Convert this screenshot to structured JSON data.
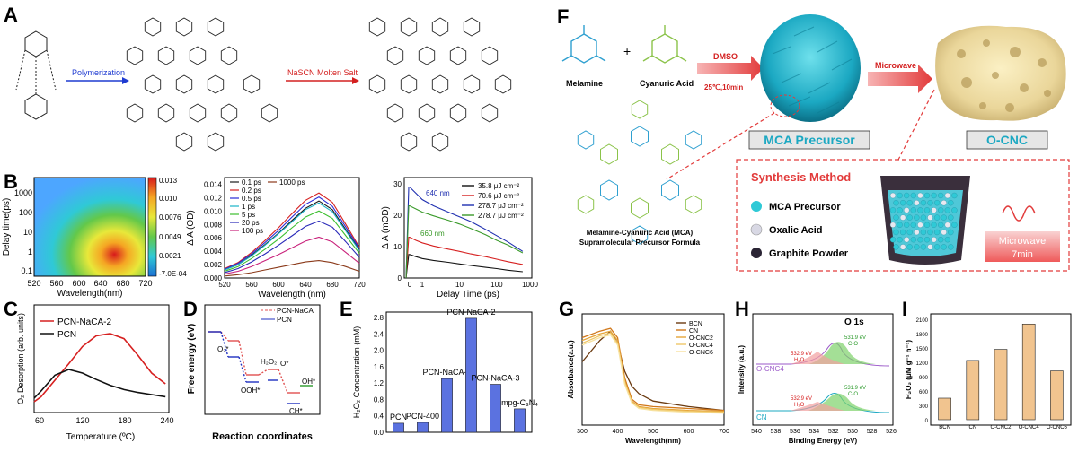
{
  "panels": {
    "A": {
      "letter": "A",
      "step1": "Polymerization",
      "step2": "NaSCN Molten Salt"
    },
    "B": {
      "letter": "B",
      "heatmap": {
        "ylabel": "Delay time(ps)",
        "xlabel": "Wavelength(nm)",
        "xticks": [
          "520",
          "560",
          "600",
          "640",
          "680",
          "720"
        ],
        "yticks": [
          "1000",
          "100",
          "10",
          "1",
          "0.1"
        ],
        "cbar": [
          "0.013",
          "0.010",
          "0.0076",
          "0.0049",
          "0.0021",
          "-7.0E-04"
        ]
      },
      "spectra": {
        "ylabel": "Δ A (OD)",
        "xlabel": "Wavelength (nm)",
        "xticks": [
          "520",
          "560",
          "600",
          "640",
          "680",
          "720"
        ],
        "yticks": [
          "0.000",
          "0.002",
          "0.004",
          "0.006",
          "0.008",
          "0.010",
          "0.012",
          "0.014"
        ],
        "legend": [
          "0.1 ps",
          "0.2 ps",
          "0.5 ps",
          "1 ps",
          "5 ps",
          "20 ps",
          "100 ps",
          "1000 ps"
        ]
      },
      "kinetics": {
        "ylabel": "Δ A (mOD)",
        "xlabel": "Delay Time (ps)",
        "xticks": [
          "0",
          "1",
          "10",
          "100",
          "1000"
        ],
        "yticks": [
          "0",
          "10",
          "20",
          "30"
        ],
        "legend": [
          "35.8 μJ cm⁻²",
          "70.6 μJ cm⁻²",
          "278.7 μJ cm⁻²",
          "278.7 μJ cm⁻²"
        ],
        "ann1": "640 nm",
        "ann2": "660 nm"
      }
    },
    "C": {
      "letter": "C",
      "legend": [
        "PCN-NaCA-2",
        "PCN"
      ],
      "ylabel": "O₂ Desorption (arb. units)",
      "xlabel": "Temperature (ºC)",
      "xticks": [
        "60",
        "120",
        "180",
        "240"
      ]
    },
    "D": {
      "letter": "D",
      "legend": [
        "PCN-NaCA",
        "PCN"
      ],
      "ylabel": "Free energy (eV)",
      "xlabel": "Reaction coordinates",
      "species": [
        "O₂*",
        "OOH*",
        "H₂O₂",
        "O*",
        "OH*",
        "CH*"
      ]
    },
    "E": {
      "letter": "E",
      "ylabel": "H₂O₂ Concentration (mM)",
      "yticks": [
        "0.0",
        "0.4",
        "0.8",
        "1.2",
        "1.6",
        "2.0",
        "2.4",
        "2.8"
      ],
      "labels": [
        "PCN",
        "PCN-400",
        "PCN-NaCA-1",
        "PCN-NaCA-2",
        "PCN-NaCA-3",
        "mpg-C₃N₄"
      ]
    },
    "F": {
      "letter": "F",
      "melamine": "Melamine",
      "cyanuric": "Cyanuric Acid",
      "dmso": "DMSO",
      "dmso_cond": "25℃,10min",
      "microwave_arrow": "Microwave",
      "precursor": "MCA Precursor",
      "product": "O-CNC",
      "formula1": "Melamine-Cyanuric Acid (MCA)",
      "formula2": "Supramolecular Precursor Formula",
      "synthesis_title": "Synthesis Method",
      "legend": [
        "MCA Precursor",
        "Oxalic Acid",
        "Graphite Powder"
      ],
      "mw_label1": "Microwave",
      "mw_label2": "7min"
    },
    "G": {
      "letter": "G",
      "ylabel": "Absorbance(a.u.)",
      "xlabel": "Wavelength(nm)",
      "xticks": [
        "300",
        "400",
        "500",
        "600",
        "700"
      ],
      "legend": [
        "BCN",
        "CN",
        "O-CNC2",
        "O-CNC4",
        "O-CNC6"
      ]
    },
    "H": {
      "letter": "H",
      "title": "O 1s",
      "ylabel": "Intensity (a.u.)",
      "xlabel": "Binding Energy (eV)",
      "xticks": [
        "540",
        "538",
        "536",
        "534",
        "532",
        "530",
        "528",
        "526"
      ],
      "s1": "O-CNC4",
      "s2": "CN",
      "p1a": "532.9 eV",
      "p1b": "H₂O",
      "p2a": "531.9 eV",
      "p2b": "C-O",
      "p3a": "532.9 eV",
      "p3b": "H₂O",
      "p4a": "531.9 eV",
      "p4b": "C-O"
    },
    "I": {
      "letter": "I",
      "ylabel": "H₂O₂ (μM g⁻¹ h⁻¹)",
      "yticks": [
        "0",
        "300",
        "600",
        "900",
        "1200",
        "1500",
        "1800",
        "2100"
      ],
      "labels": [
        "BCN",
        "CN",
        "O-CNC2",
        "O-CNC4",
        "O-CNC6"
      ]
    }
  },
  "chart_data": [
    {
      "type": "bar",
      "panel": "E",
      "categories": [
        "PCN",
        "PCN-400",
        "PCN-NaCA-1",
        "PCN-NaCA-2",
        "PCN-NaCA-3",
        "mpg-C₃N₄"
      ],
      "values": [
        0.22,
        0.24,
        1.31,
        2.78,
        1.17,
        0.57
      ],
      "ylim": [
        0,
        2.8
      ],
      "ylabel": "H₂O₂ Concentration (mM)",
      "color": "#5b72e0"
    },
    {
      "type": "bar",
      "panel": "I",
      "categories": [
        "BCN",
        "CN",
        "O-CNC2",
        "O-CNC4",
        "O-CNC6"
      ],
      "values": [
        450,
        1240,
        1470,
        2000,
        1020
      ],
      "ylim": [
        0,
        2100
      ],
      "ylabel": "H₂O₂ (μM g⁻¹ h⁻¹)",
      "color": "#f1c48f"
    },
    {
      "type": "line",
      "panel": "C",
      "x": [
        50,
        60,
        80,
        100,
        120,
        140,
        160,
        180,
        200,
        220,
        240
      ],
      "series": [
        {
          "name": "PCN-NaCA-2",
          "values": [
            0.05,
            0.12,
            0.35,
            0.58,
            0.82,
            0.97,
            1.0,
            0.93,
            0.7,
            0.45,
            0.3
          ],
          "color": "#d62020"
        },
        {
          "name": "PCN",
          "values": [
            0.1,
            0.2,
            0.42,
            0.5,
            0.45,
            0.36,
            0.28,
            0.22,
            0.18,
            0.15,
            0.12
          ],
          "color": "#111111"
        }
      ],
      "xlim": [
        50,
        245
      ],
      "xlabel": "Temperature (ºC)",
      "ylabel": "O₂ Desorption (arb. units)"
    },
    {
      "type": "line",
      "panel": "B-spectra",
      "x": [
        520,
        540,
        560,
        580,
        600,
        620,
        640,
        660,
        680,
        700,
        720
      ],
      "xlim": [
        520,
        720
      ],
      "ylim": [
        0,
        0.015
      ],
      "xlabel": "Wavelength (nm)",
      "ylabel": "Δ A (OD)",
      "series": [
        {
          "name": "0.1 ps",
          "color": "#1a1a1a",
          "values": [
            0.0012,
            0.002,
            0.0034,
            0.005,
            0.0067,
            0.0086,
            0.0104,
            0.0115,
            0.0102,
            0.0072,
            0.0042
          ]
        },
        {
          "name": "0.2 ps",
          "color": "#d62020",
          "values": [
            0.0014,
            0.0023,
            0.0038,
            0.0056,
            0.0075,
            0.0096,
            0.0116,
            0.0127,
            0.0113,
            0.008,
            0.0046
          ]
        },
        {
          "name": "0.5 ps",
          "color": "#2a2ad6",
          "values": [
            0.0013,
            0.0022,
            0.0036,
            0.0053,
            0.0071,
            0.0091,
            0.011,
            0.0121,
            0.0107,
            0.0076,
            0.0044
          ]
        },
        {
          "name": "1 ps",
          "color": "#19b3c9",
          "values": [
            0.0012,
            0.002,
            0.0033,
            0.0049,
            0.0066,
            0.0084,
            0.0102,
            0.0112,
            0.0099,
            0.007,
            0.0041
          ]
        },
        {
          "name": "5 ps",
          "color": "#3cbf2f",
          "values": [
            0.001,
            0.0017,
            0.0029,
            0.0043,
            0.0058,
            0.0075,
            0.0091,
            0.01,
            0.0089,
            0.0063,
            0.0037
          ]
        },
        {
          "name": "20 ps",
          "color": "#2828b8",
          "values": [
            0.0008,
            0.0014,
            0.0024,
            0.0036,
            0.0049,
            0.0063,
            0.0077,
            0.0085,
            0.0076,
            0.0054,
            0.0031
          ]
        },
        {
          "name": "100 ps",
          "color": "#c8207a",
          "values": [
            0.0006,
            0.001,
            0.0017,
            0.0026,
            0.0035,
            0.0045,
            0.0055,
            0.0061,
            0.0054,
            0.0038,
            0.0022
          ]
        },
        {
          "name": "1000 ps",
          "color": "#8b3a1a",
          "values": [
            0.0003,
            0.0005,
            0.0008,
            0.0012,
            0.0016,
            0.002,
            0.0024,
            0.0026,
            0.0023,
            0.0017,
            0.001
          ]
        }
      ]
    },
    {
      "type": "line",
      "panel": "B-kinetics",
      "x": [
        0,
        0.5,
        1,
        2,
        5,
        10,
        20,
        50,
        100,
        200,
        500
      ],
      "ylim": [
        0,
        32
      ],
      "xlabel": "Delay Time (ps)",
      "ylabel": "Δ A (mOD)",
      "series": [
        {
          "name": "35.8 μJ cm⁻²",
          "color": "#111111",
          "values": [
            7.5,
            6.8,
            6.2,
            5.6,
            5.0,
            4.5,
            4.0,
            3.4,
            3.0,
            2.5,
            2.0
          ]
        },
        {
          "name": "70.6 μJ cm⁻²",
          "color": "#d62020",
          "values": [
            13,
            12,
            11.2,
            10.2,
            9.2,
            8.5,
            7.7,
            6.8,
            6,
            5.2,
            4.3
          ]
        },
        {
          "name": "278.7 μJ cm⁻²",
          "color": "#1f2fb0",
          "values": [
            29,
            27,
            25,
            23,
            21,
            19.5,
            18,
            15.5,
            13.5,
            11.5,
            8.5
          ]
        },
        {
          "name": "278.7 μJ cm⁻²",
          "color": "#3a9a2a",
          "values": [
            23,
            22,
            21,
            19.8,
            18.4,
            17.2,
            15.8,
            13.8,
            12,
            10.5,
            8
          ]
        }
      ]
    },
    {
      "type": "line",
      "panel": "G",
      "x": [
        300,
        350,
        380,
        400,
        420,
        440,
        460,
        500,
        600,
        700
      ],
      "xlim": [
        300,
        700
      ],
      "xlabel": "Wavelength(nm)",
      "ylabel": "Absorbance(a.u.)",
      "series": [
        {
          "name": "BCN",
          "color": "#6b3a10",
          "values": [
            0.62,
            0.85,
            0.95,
            0.82,
            0.52,
            0.36,
            0.28,
            0.2,
            0.14,
            0.1
          ]
        },
        {
          "name": "CN",
          "color": "#d1781a",
          "values": [
            0.88,
            0.95,
            0.98,
            0.88,
            0.45,
            0.22,
            0.16,
            0.14,
            0.12,
            0.1
          ]
        },
        {
          "name": "O-CNC2",
          "color": "#e5a53a",
          "values": [
            0.85,
            0.92,
            0.95,
            0.85,
            0.42,
            0.2,
            0.14,
            0.12,
            0.1,
            0.09
          ]
        },
        {
          "name": "O-CNC4",
          "color": "#f0c86a",
          "values": [
            0.82,
            0.9,
            0.93,
            0.82,
            0.4,
            0.19,
            0.13,
            0.11,
            0.09,
            0.08
          ]
        },
        {
          "name": "O-CNC6",
          "color": "#f7e2a0",
          "values": [
            0.8,
            0.88,
            0.91,
            0.8,
            0.38,
            0.18,
            0.12,
            0.1,
            0.08,
            0.07
          ]
        }
      ]
    }
  ],
  "colors": {
    "bar_E": "#5b72e0",
    "bar_I": "#f1c48f",
    "accent_red": "#e0312f",
    "teal": "#2fb6c8",
    "green_struct": "#8bc34a",
    "blue_struct": "#2fa0d0"
  }
}
